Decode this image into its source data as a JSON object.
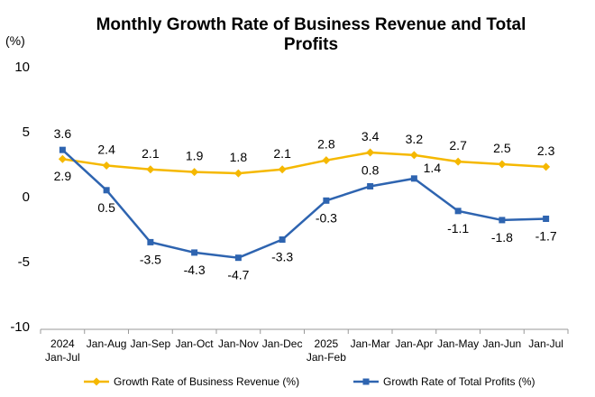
{
  "chart_data": {
    "type": "line",
    "title": "Monthly Growth Rate of Business Revenue and Total Profits",
    "title_lines": [
      "Monthly Growth Rate of Business Revenue and Total",
      "Profits"
    ],
    "ylabel": "(%)",
    "ylim": [
      -10,
      10
    ],
    "yticks": [
      10,
      5,
      0,
      -5,
      -10
    ],
    "grid": false,
    "legend_position": "bottom",
    "categories": [
      [
        "2024",
        "Jan-Jul"
      ],
      [
        "Jan-Aug"
      ],
      [
        "Jan-Sep"
      ],
      [
        "Jan-Oct"
      ],
      [
        "Jan-Nov"
      ],
      [
        "Jan-Dec"
      ],
      [
        "2025",
        "Jan-Feb"
      ],
      [
        "Jan-Mar"
      ],
      [
        "Jan-Apr"
      ],
      [
        "Jan-May"
      ],
      [
        "Jan-Jun"
      ],
      [
        "Jan-Jul"
      ]
    ],
    "series": [
      {
        "name": "Growth Rate of Business Revenue (%)",
        "color": "#F5B800",
        "marker": "diamond",
        "values": [
          2.9,
          2.4,
          2.1,
          1.9,
          1.8,
          2.1,
          2.8,
          3.4,
          3.2,
          2.7,
          2.5,
          2.3
        ],
        "labels": [
          "2.9",
          "2.4",
          "2.1",
          "1.9",
          "1.8",
          "2.1",
          "2.8",
          "3.4",
          "3.2",
          "2.7",
          "2.5",
          "2.3"
        ],
        "label_side": [
          "below",
          "above",
          "above",
          "above",
          "above",
          "above",
          "above",
          "above",
          "above",
          "above",
          "above",
          "above"
        ]
      },
      {
        "name": "Growth Rate of Total Profits (%)",
        "color": "#2E64B0",
        "marker": "square",
        "values": [
          3.6,
          0.5,
          -3.5,
          -4.3,
          -4.7,
          -3.3,
          -0.3,
          0.8,
          1.4,
          -1.1,
          -1.8,
          -1.7
        ],
        "labels": [
          "3.6",
          "0.5",
          "-3.5",
          "-4.3",
          "-4.7",
          "-3.3",
          "-0.3",
          "0.8",
          "1.4",
          "-1.1",
          "-1.8",
          "-1.7"
        ],
        "label_side": [
          "above",
          "below",
          "below",
          "below",
          "below",
          "below",
          "below",
          "above",
          "right",
          "below",
          "below",
          "below"
        ]
      }
    ]
  }
}
